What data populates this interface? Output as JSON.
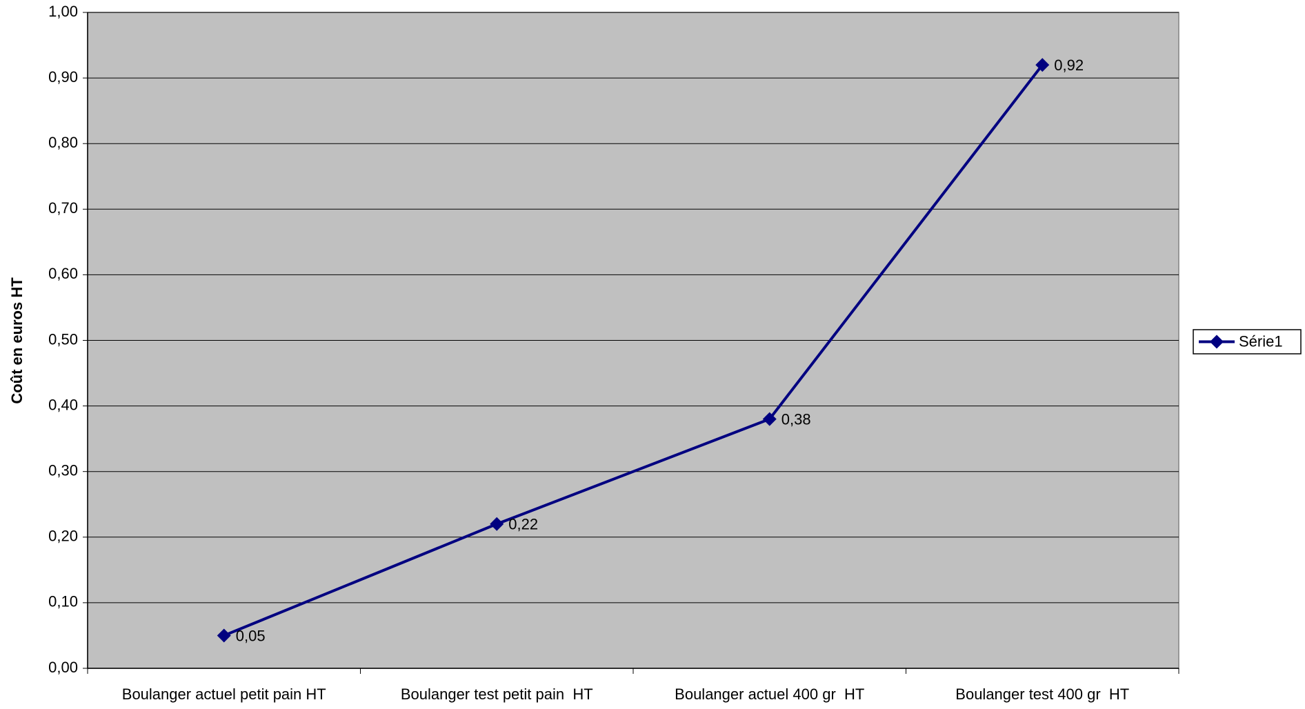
{
  "chart_data": {
    "type": "line",
    "y_label": "Coût en euros HT",
    "categories": [
      "Boulanger actuel petit pain HT",
      "Boulanger test petit pain  HT",
      "Boulanger actuel 400 gr  HT",
      "Boulanger test 400 gr  HT"
    ],
    "series": [
      {
        "name": "Série1",
        "color": "#000080",
        "values": [
          0.05,
          0.22,
          0.38,
          0.92
        ],
        "value_labels": [
          "0,05",
          "0,22",
          "0,38",
          "0,92"
        ]
      }
    ],
    "ylim": [
      0,
      1
    ],
    "yticks": [
      {
        "value": 0,
        "label": "0,00"
      },
      {
        "value": 0.1,
        "label": "0,10"
      },
      {
        "value": 0.2,
        "label": "0,20"
      },
      {
        "value": 0.3,
        "label": "0,30"
      },
      {
        "value": 0.4,
        "label": "0,40"
      },
      {
        "value": 0.5,
        "label": "0,50"
      },
      {
        "value": 0.6,
        "label": "0,60"
      },
      {
        "value": 0.7,
        "label": "0,70"
      },
      {
        "value": 0.8,
        "label": "0,80"
      },
      {
        "value": 0.9,
        "label": "0,90"
      },
      {
        "value": 1,
        "label": "1,00"
      }
    ],
    "grid": true,
    "background": "#c0c0c0",
    "legend": "right"
  }
}
